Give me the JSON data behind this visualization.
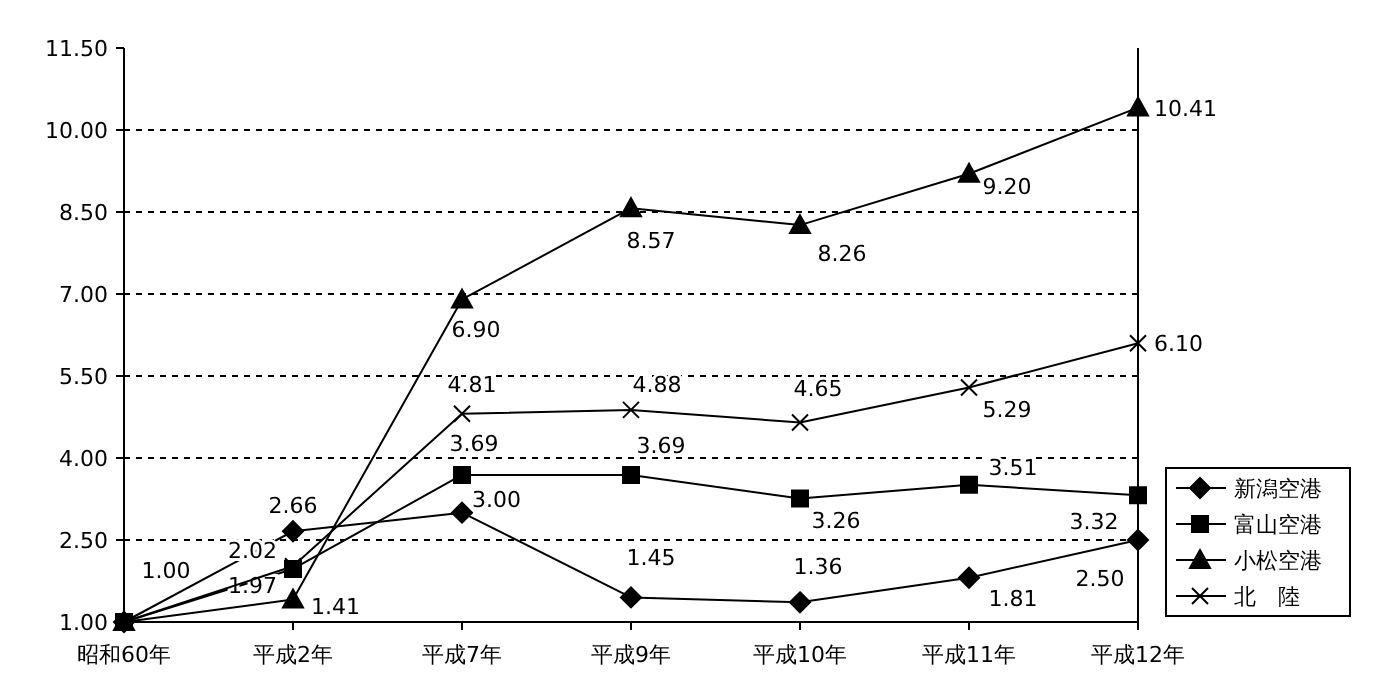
{
  "chart_data": {
    "type": "line",
    "categories": [
      "昭和60年",
      "平成2年",
      "平成7年",
      "平成9年",
      "平成10年",
      "平成11年",
      "平成12年"
    ],
    "series": [
      {
        "name": "新潟空港",
        "color": "#000000",
        "marker": "diamond",
        "values": [
          1.0,
          2.66,
          3.0,
          1.45,
          1.36,
          1.81,
          2.5
        ],
        "value_labels": [
          "1.00",
          "2.66",
          "3.00",
          "1.45",
          "1.36",
          "1.81",
          "2.50"
        ]
      },
      {
        "name": "富山空港",
        "color": "#000000",
        "marker": "square",
        "values": [
          1.0,
          1.97,
          3.69,
          3.69,
          3.26,
          3.51,
          3.32
        ],
        "value_labels": [
          null,
          "1.97",
          "3.69",
          "3.69",
          "3.26",
          "3.51",
          "3.32"
        ]
      },
      {
        "name": "小松空港",
        "color": "#000000",
        "marker": "triangle",
        "values": [
          1.0,
          1.41,
          6.9,
          8.57,
          8.26,
          9.2,
          10.41
        ],
        "value_labels": [
          null,
          "1.41",
          "6.90",
          "8.57",
          "8.26",
          "9.20",
          "10.41"
        ]
      },
      {
        "name": "北　陸",
        "color": "#000000",
        "marker": "cross",
        "values": [
          1.0,
          2.02,
          4.81,
          4.88,
          4.65,
          5.29,
          6.1
        ],
        "value_labels": [
          null,
          "2.02",
          "4.81",
          "4.88",
          "4.65",
          "5.29",
          "6.10"
        ]
      }
    ],
    "ylim": [
      1.0,
      11.5
    ],
    "yticks": [
      {
        "value": 1.0,
        "label": "1.00"
      },
      {
        "value": 2.5,
        "label": "2.50"
      },
      {
        "value": 4.0,
        "label": "4.00"
      },
      {
        "value": 5.5,
        "label": "5.50"
      },
      {
        "value": 7.0,
        "label": "7.00"
      },
      {
        "value": 8.5,
        "label": "8.50"
      },
      {
        "value": 10.0,
        "label": "10.00"
      },
      {
        "value": 11.5,
        "label": "11.50"
      }
    ],
    "grid": "y",
    "legend": "bottom right",
    "line_style": "solid"
  }
}
